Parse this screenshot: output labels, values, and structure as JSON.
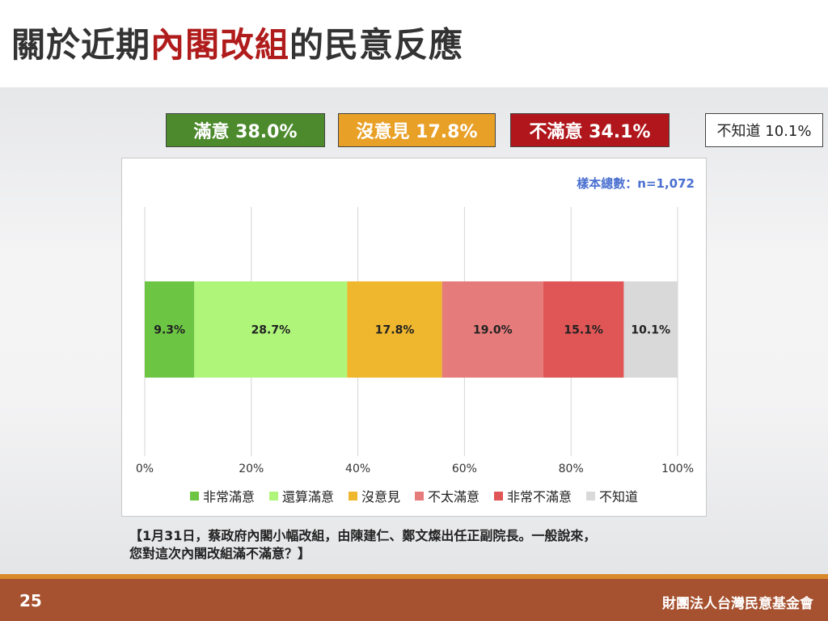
{
  "title": {
    "part1": "關於近期",
    "highlight": "內閣改組",
    "part2": "的民意反應"
  },
  "summary": [
    {
      "key": "sat",
      "label": "滿意 38.0%"
    },
    {
      "key": "neu",
      "label": "沒意見 17.8%"
    },
    {
      "key": "dis",
      "label": "不滿意 34.1%"
    },
    {
      "key": "unk",
      "label": "不知道 10.1%"
    }
  ],
  "chart_data": {
    "type": "bar",
    "orientation": "horizontal-stacked",
    "sample_label": "樣本總數：n=1,072",
    "xlim": [
      0,
      100
    ],
    "x_ticks": [
      "0%",
      "20%",
      "40%",
      "60%",
      "80%",
      "100%"
    ],
    "grid": true,
    "legend_position": "bottom",
    "series": [
      {
        "name": "非常滿意",
        "value": 9.3,
        "label": "9.3%",
        "color": "#6cc644"
      },
      {
        "name": "還算滿意",
        "value": 28.7,
        "label": "28.7%",
        "color": "#aef57a"
      },
      {
        "name": "沒意見",
        "value": 17.8,
        "label": "17.8%",
        "color": "#efb72e"
      },
      {
        "name": "不太滿意",
        "value": 19.0,
        "label": "19.0%",
        "color": "#e57b7b"
      },
      {
        "name": "非常不滿意",
        "value": 15.1,
        "label": "15.1%",
        "color": "#e05555"
      },
      {
        "name": "不知道",
        "value": 10.1,
        "label": "10.1%",
        "color": "#d9d9d9"
      }
    ]
  },
  "question": {
    "line1": "【1月31日，蔡政府內閣小幅改組，由陳建仁、鄭文燦出任正副院長。一般說來，",
    "line2": "您對這次內閣改組滿不滿意？】"
  },
  "footer": {
    "page_number": "25",
    "organization": "財團法人台灣民意基金會"
  }
}
